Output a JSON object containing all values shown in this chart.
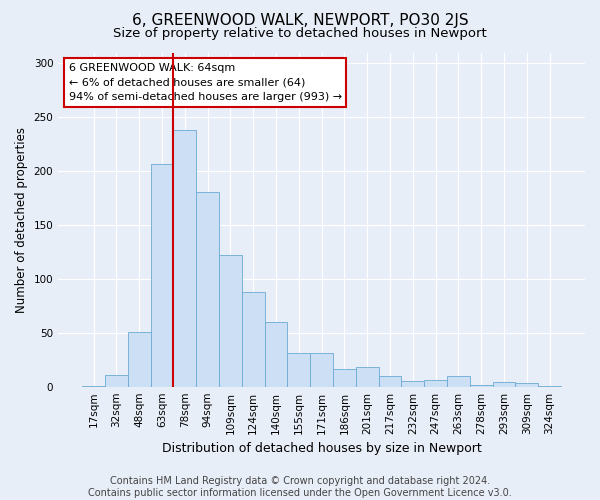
{
  "title": "6, GREENWOOD WALK, NEWPORT, PO30 2JS",
  "subtitle": "Size of property relative to detached houses in Newport",
  "xlabel": "Distribution of detached houses by size in Newport",
  "ylabel": "Number of detached properties",
  "categories": [
    "17sqm",
    "32sqm",
    "48sqm",
    "63sqm",
    "78sqm",
    "94sqm",
    "109sqm",
    "124sqm",
    "140sqm",
    "155sqm",
    "171sqm",
    "186sqm",
    "201sqm",
    "217sqm",
    "232sqm",
    "247sqm",
    "263sqm",
    "278sqm",
    "293sqm",
    "309sqm",
    "324sqm"
  ],
  "values": [
    1,
    11,
    51,
    207,
    238,
    181,
    122,
    88,
    60,
    31,
    31,
    16,
    18,
    10,
    5,
    6,
    10,
    2,
    4,
    3,
    1
  ],
  "bar_color": "#ccdff5",
  "bar_edge_color": "#6aaad4",
  "vline_color": "#cc0000",
  "vline_x_index": 3,
  "annotation_text": "6 GREENWOOD WALK: 64sqm\n← 6% of detached houses are smaller (64)\n94% of semi-detached houses are larger (993) →",
  "annotation_box_facecolor": "#ffffff",
  "annotation_box_edgecolor": "#cc0000",
  "footer_text": "Contains HM Land Registry data © Crown copyright and database right 2024.\nContains public sector information licensed under the Open Government Licence v3.0.",
  "ylim": [
    0,
    310
  ],
  "bg_color": "#e8eef8",
  "plot_bg_color": "#e8eef8",
  "grid_color": "#ffffff",
  "title_fontsize": 11,
  "subtitle_fontsize": 9.5,
  "ylabel_fontsize": 8.5,
  "xlabel_fontsize": 9,
  "tick_fontsize": 7.5,
  "annotation_fontsize": 8,
  "footer_fontsize": 7
}
